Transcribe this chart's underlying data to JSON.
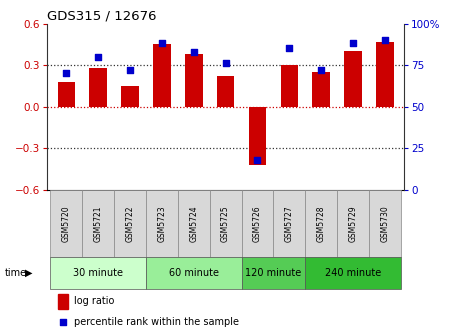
{
  "title": "GDS315 / 12676",
  "samples": [
    "GSM5720",
    "GSM5721",
    "GSM5722",
    "GSM5723",
    "GSM5724",
    "GSM5725",
    "GSM5726",
    "GSM5727",
    "GSM5728",
    "GSM5729",
    "GSM5730"
  ],
  "log_ratio": [
    0.18,
    0.28,
    0.15,
    0.45,
    0.38,
    0.22,
    -0.42,
    0.3,
    0.25,
    0.4,
    0.47
  ],
  "percentile": [
    70,
    80,
    72,
    88,
    83,
    76,
    18,
    85,
    72,
    88,
    90
  ],
  "ylim_left": [
    -0.6,
    0.6
  ],
  "ylim_right": [
    0,
    100
  ],
  "yticks_left": [
    -0.6,
    -0.3,
    0.0,
    0.3,
    0.6
  ],
  "yticks_right": [
    0,
    25,
    50,
    75,
    100
  ],
  "bar_color": "#cc0000",
  "dot_color": "#0000cc",
  "bar_width": 0.55,
  "groups": [
    {
      "label": "30 minute",
      "samples": [
        0,
        1,
        2
      ],
      "color": "#ccffcc"
    },
    {
      "label": "60 minute",
      "samples": [
        3,
        4,
        5
      ],
      "color": "#99ee99"
    },
    {
      "label": "120 minute",
      "samples": [
        6,
        7
      ],
      "color": "#55cc55"
    },
    {
      "label": "240 minute",
      "samples": [
        8,
        9,
        10
      ],
      "color": "#33bb33"
    }
  ],
  "legend_log_ratio": "log ratio",
  "legend_percentile": "percentile rank within the sample",
  "time_label": "time",
  "bg_color": "#ffffff",
  "tick_label_color_left": "#cc0000",
  "tick_label_color_right": "#0000cc",
  "hline_color_red": "#cc0000",
  "hline_color_black": "#000000",
  "dotted_color": "#333333"
}
